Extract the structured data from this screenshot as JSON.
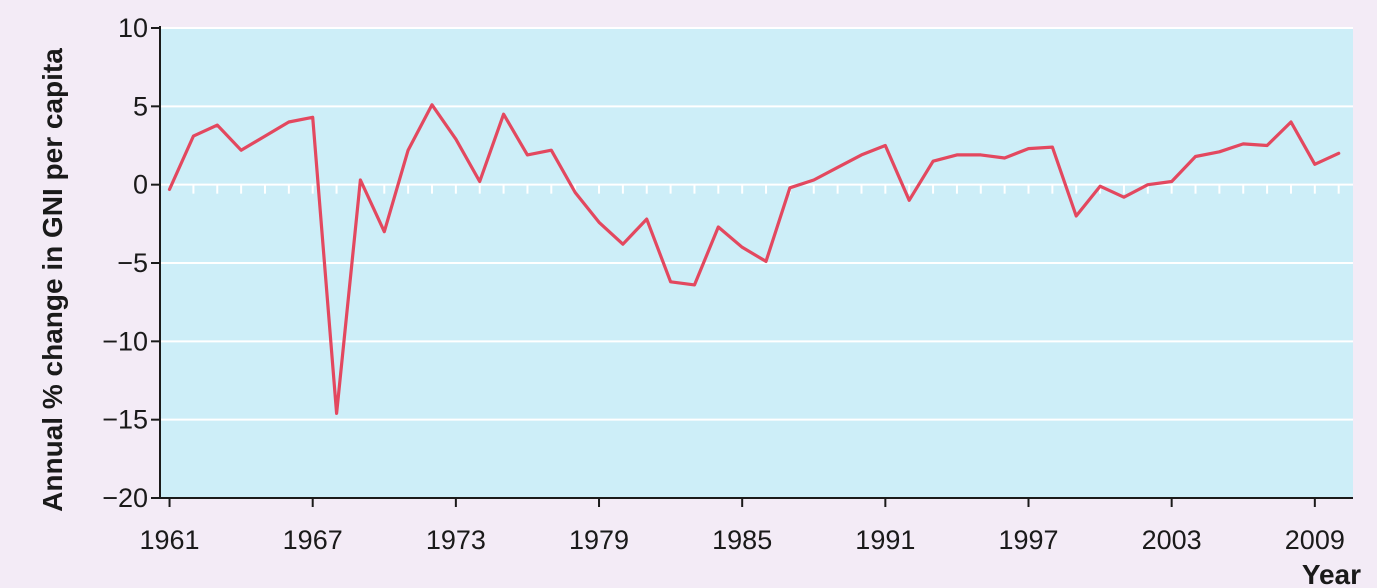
{
  "chart_data": {
    "type": "line",
    "title": "",
    "xlabel": "Year",
    "ylabel": "Annual % change in GNI per capita",
    "xlim": [
      1960.6,
      2010.6
    ],
    "ylim": [
      -20,
      10
    ],
    "x_ticks": [
      1961,
      1967,
      1973,
      1979,
      1985,
      1991,
      1997,
      2003,
      2009
    ],
    "y_ticks": [
      10,
      5,
      0,
      -5,
      -10,
      -15,
      -20
    ],
    "y_tick_labels": [
      "10",
      "5",
      "0",
      "−5",
      "−10",
      "−15",
      "−20"
    ],
    "grid": "horizontal",
    "colors": {
      "plot_background": "#cdeef8",
      "page_background": "#f3ebf6",
      "line": "#e3485f",
      "gridline": "#ffffff",
      "axis": "#1a1a1a"
    },
    "series": [
      {
        "x": [
          1961,
          1962,
          1963,
          1964,
          1965,
          1966,
          1967,
          1968,
          1969,
          1970,
          1971,
          1972,
          1973,
          1974,
          1975,
          1976,
          1977,
          1978,
          1979,
          1980,
          1981,
          1982,
          1983,
          1984,
          1985,
          1986,
          1987,
          1988,
          1989,
          1990,
          1991,
          1992,
          1993,
          1994,
          1995,
          1996,
          1997,
          1998,
          1999,
          2000,
          2001,
          2002,
          2003,
          2004,
          2005,
          2006,
          2007,
          2008,
          2009,
          2010
        ],
        "y": [
          -0.3,
          3.1,
          3.8,
          2.2,
          3.1,
          4.0,
          4.3,
          -14.6,
          0.3,
          -3.0,
          2.2,
          5.1,
          2.9,
          0.2,
          4.5,
          1.9,
          2.2,
          -0.5,
          -2.4,
          -3.8,
          -2.2,
          -6.2,
          -6.4,
          -2.7,
          -4.0,
          -4.9,
          -0.2,
          0.3,
          1.1,
          1.9,
          2.5,
          -1.0,
          1.5,
          1.9,
          1.9,
          1.7,
          2.3,
          2.4,
          -2.0,
          -0.1,
          -0.8,
          0.0,
          0.2,
          1.8,
          2.1,
          2.6,
          2.5,
          4.0,
          1.3,
          2.0
        ]
      }
    ]
  }
}
